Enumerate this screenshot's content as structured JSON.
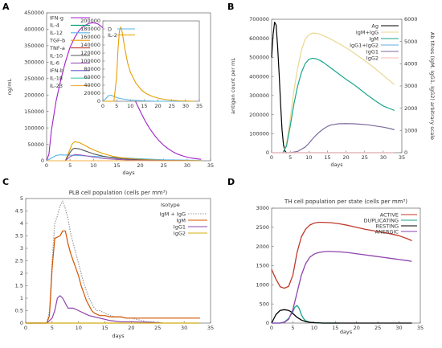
{
  "chart_data": [
    {
      "id": "A",
      "type": "line",
      "panel_label": "A",
      "xlabel": "days",
      "ylabel": "ng/mL",
      "xlim": [
        0,
        35
      ],
      "ylim": [
        0,
        450000
      ],
      "xticks": [
        0,
        5,
        10,
        15,
        20,
        25,
        30,
        35
      ],
      "yticks": [
        0,
        50000,
        100000,
        150000,
        200000,
        250000,
        300000,
        350000,
        400000,
        450000
      ],
      "legend_position": "top-left",
      "series": [
        {
          "name": "IFN-g",
          "color": "#a020c8",
          "x": [
            0,
            0.5,
            1,
            2,
            3,
            4,
            5,
            6,
            7,
            8,
            9,
            10,
            11,
            12,
            13,
            14,
            15,
            16,
            17,
            18,
            19,
            20,
            21,
            22,
            23,
            24,
            25,
            26,
            27,
            28,
            29,
            30,
            31,
            32,
            33
          ],
          "y": [
            0,
            20000,
            90000,
            180000,
            245000,
            300000,
            345000,
            375000,
            398000,
            410000,
            418000,
            420000,
            416000,
            405000,
            385000,
            358000,
            325000,
            290000,
            252000,
            215000,
            180000,
            150000,
            122000,
            98000,
            78000,
            61000,
            47000,
            36000,
            27000,
            20000,
            15000,
            11000,
            8000,
            6000,
            4500
          ]
        },
        {
          "name": "IL-4",
          "color": "#009e73",
          "x": [
            0,
            33
          ],
          "y": [
            0,
            0
          ]
        },
        {
          "name": "IL-12",
          "color": "#56b4e9",
          "x": [
            0,
            1,
            2,
            3,
            5,
            8,
            12,
            16,
            20,
            25,
            33
          ],
          "y": [
            0,
            8000,
            16000,
            18000,
            17000,
            15000,
            12000,
            9000,
            6000,
            3000,
            1000
          ]
        },
        {
          "name": "TGF-b",
          "color": "#e69f00",
          "x": [
            0,
            4,
            5,
            5.5,
            6,
            7,
            8,
            9,
            10,
            12,
            14,
            16,
            18,
            20,
            22,
            25,
            33
          ],
          "y": [
            0,
            0,
            35000,
            52000,
            58000,
            55000,
            48000,
            40000,
            33000,
            22000,
            14000,
            9000,
            6000,
            4000,
            2500,
            1000,
            0
          ]
        },
        {
          "name": "TNF-a",
          "color": "#c0392b",
          "x": [
            0,
            33
          ],
          "y": [
            0,
            0
          ]
        },
        {
          "name": "IL-10",
          "color": "#555555",
          "x": [
            0,
            4,
            5,
            5.5,
            6,
            7,
            8,
            9,
            10,
            12,
            14,
            16,
            18,
            20,
            22,
            25,
            33
          ],
          "y": [
            0,
            0,
            25000,
            35000,
            38000,
            36000,
            31000,
            26000,
            21000,
            14000,
            9000,
            6000,
            4000,
            2500,
            1500,
            800,
            0
          ]
        },
        {
          "name": "IL-6",
          "color": "#9b59b6",
          "x": [
            0,
            4,
            5,
            6,
            7,
            8,
            10,
            12,
            15,
            18,
            22,
            33
          ],
          "y": [
            0,
            0,
            12000,
            19000,
            18000,
            16000,
            11000,
            7000,
            4000,
            2000,
            800,
            0
          ]
        },
        {
          "name": "IFN-b",
          "color": "#6a5acd",
          "x": [
            0,
            33
          ],
          "y": [
            0,
            0
          ]
        },
        {
          "name": "IL-18",
          "color": "#48c9b0",
          "x": [
            0,
            33
          ],
          "y": [
            0,
            0
          ]
        },
        {
          "name": "IL-23",
          "color": "#f5b041",
          "x": [
            0,
            33
          ],
          "y": [
            0,
            0
          ]
        }
      ],
      "inset": {
        "xlim": [
          0,
          35
        ],
        "ylim": [
          0,
          200000
        ],
        "xticks": [
          0,
          5,
          10,
          15,
          20,
          25,
          30,
          35
        ],
        "yticks": [
          0,
          20000,
          40000,
          60000,
          80000,
          100000,
          120000,
          140000,
          160000,
          180000,
          200000
        ],
        "legend_position": "top-left",
        "series": [
          {
            "name": "D",
            "color": "#56b4e9",
            "x": [
              0,
              1,
              2,
              3,
              4,
              6,
              10,
              15,
              20,
              25,
              33
            ],
            "y": [
              0,
              6000,
              14000,
              15000,
              12000,
              7000,
              3000,
              1000,
              0,
              0,
              0
            ]
          },
          {
            "name": "IL-2",
            "color": "#e69f00",
            "x": [
              0,
              4,
              5,
              5.5,
              6,
              6.5,
              7,
              8,
              9,
              10,
              12,
              14,
              16,
              18,
              20,
              22,
              25,
              28,
              31,
              33
            ],
            "y": [
              0,
              0,
              60000,
              130000,
              175000,
              185000,
              172000,
              130000,
              95000,
              72000,
              45000,
              28000,
              18000,
              12000,
              8000,
              5000,
              2500,
              1000,
              500,
              0
            ]
          }
        ]
      }
    },
    {
      "id": "B",
      "type": "line",
      "panel_label": "B",
      "xlabel": "days",
      "ylabel": "antigen count per mL",
      "y2label": "Ab titres (IgM, IgG1, IgG2) arbitrary scale",
      "xlim": [
        0,
        35
      ],
      "ylim": [
        0,
        700000
      ],
      "y2lim": [
        0,
        6000
      ],
      "xticks": [
        0,
        5,
        10,
        15,
        20,
        25,
        30,
        35
      ],
      "yticks": [
        0,
        100000,
        200000,
        300000,
        400000,
        500000,
        600000,
        700000
      ],
      "y2ticks": [
        0,
        1000,
        2000,
        3000,
        4000,
        5000,
        6000
      ],
      "legend_position": "top-right",
      "series": [
        {
          "name": "Ag",
          "color": "#000000",
          "axis": "left",
          "x": [
            0,
            0.4,
            0.8,
            1.2,
            1.6,
            2.0,
            2.4,
            2.8,
            3.2,
            3.6,
            4.0
          ],
          "y": [
            500000,
            620000,
            685000,
            670000,
            560000,
            420000,
            260000,
            120000,
            40000,
            8000,
            0
          ]
        },
        {
          "name": "IgM+IgG",
          "color": "#e8d890",
          "axis": "right",
          "x": [
            3,
            4,
            5,
            6,
            7,
            8,
            9,
            10,
            11,
            12,
            13,
            14,
            16,
            18,
            20,
            22,
            24,
            26,
            28,
            30,
            32,
            33
          ],
          "y": [
            0,
            400,
            1500,
            2800,
            3800,
            4600,
            5100,
            5300,
            5380,
            5370,
            5330,
            5260,
            5100,
            4920,
            4720,
            4500,
            4260,
            4020,
            3760,
            3480,
            3200,
            3060
          ]
        },
        {
          "name": "IgM",
          "color": "#17a589",
          "axis": "right",
          "x": [
            3,
            4,
            5,
            6,
            7,
            8,
            9,
            10,
            11,
            12,
            13,
            14,
            16,
            18,
            20,
            22,
            24,
            26,
            28,
            30,
            32,
            33
          ],
          "y": [
            0,
            300,
            1200,
            2200,
            3000,
            3600,
            4000,
            4200,
            4250,
            4220,
            4150,
            4050,
            3800,
            3550,
            3300,
            3080,
            2820,
            2560,
            2320,
            2100,
            1970,
            1900
          ]
        },
        {
          "name": "IgG1+IgG2",
          "color": "#5dade2",
          "axis": "right",
          "x": [
            0,
            33
          ],
          "y": [
            0,
            0
          ]
        },
        {
          "name": "IgG1",
          "color": "#7d6b9e",
          "axis": "right",
          "x": [
            3,
            5,
            7,
            9,
            10,
            11,
            12,
            13,
            14,
            15,
            16,
            18,
            20,
            22,
            24,
            26,
            28,
            30,
            32,
            33
          ],
          "y": [
            0,
            0,
            60,
            250,
            420,
            620,
            800,
            950,
            1080,
            1180,
            1250,
            1300,
            1310,
            1300,
            1280,
            1250,
            1200,
            1150,
            1080,
            1030
          ]
        },
        {
          "name": "IgG2",
          "color": "#f5b7b1",
          "axis": "right",
          "x": [
            0,
            33
          ],
          "y": [
            0,
            0
          ]
        }
      ]
    },
    {
      "id": "C",
      "type": "line",
      "panel_label": "C",
      "title": "PLB cell population (cells per mm³)",
      "xlabel": "days",
      "ylabel": "",
      "xlim": [
        0,
        35
      ],
      "ylim": [
        0,
        5
      ],
      "xticks": [
        0,
        5,
        10,
        15,
        20,
        25,
        30,
        35
      ],
      "yticks": [
        0,
        0.5,
        1,
        1.5,
        2,
        2.5,
        3,
        3.5,
        4,
        4.5,
        5
      ],
      "legend_title": "Isotype",
      "legend_position": "top-right",
      "series": [
        {
          "name": "IgM + IgG",
          "color": "#999999",
          "dashed": true,
          "x": [
            0,
            4,
            4.5,
            5,
            5.5,
            6,
            6.5,
            7,
            7.5,
            8,
            8.5,
            9,
            9.5,
            10,
            10.5,
            11,
            11.5,
            12,
            12.5,
            13,
            13.5,
            14,
            15,
            16,
            17,
            18,
            19,
            20,
            21,
            22,
            23,
            24,
            25
          ],
          "y": [
            0,
            0,
            0.5,
            2.5,
            4.0,
            4.3,
            4.7,
            4.9,
            4.6,
            4.2,
            3.6,
            3.2,
            2.8,
            2.4,
            2.0,
            1.6,
            1.3,
            1.0,
            0.8,
            0.6,
            0.5,
            0.5,
            0.4,
            0.3,
            0.25,
            0.25,
            0.2,
            0.2,
            0.15,
            0.1,
            0.05,
            0.05,
            0
          ]
        },
        {
          "name": "IgM",
          "color": "#d35400",
          "x": [
            0,
            4,
            4.5,
            5,
            5.5,
            6,
            6.5,
            7,
            7.5,
            8,
            8.5,
            9,
            9.5,
            10,
            10.5,
            11,
            11.5,
            12,
            12.5,
            13,
            14,
            15,
            16,
            17,
            18,
            19,
            20,
            21,
            22,
            24,
            26,
            28,
            30,
            33
          ],
          "y": [
            0,
            0,
            0.3,
            2.2,
            3.4,
            3.45,
            3.5,
            3.7,
            3.7,
            3.2,
            2.8,
            2.5,
            2.2,
            1.9,
            1.5,
            1.2,
            0.9,
            0.7,
            0.5,
            0.4,
            0.3,
            0.3,
            0.25,
            0.25,
            0.25,
            0.2,
            0.2,
            0.2,
            0.2,
            0.2,
            0.2,
            0.2,
            0.2,
            0.2
          ]
        },
        {
          "name": "IgG1",
          "color": "#8e44ad",
          "x": [
            0,
            4,
            5,
            5.5,
            6,
            6.5,
            7,
            7.5,
            8,
            9,
            10,
            11,
            12,
            13,
            14,
            15,
            16,
            18,
            20,
            24,
            26
          ],
          "y": [
            0,
            0,
            0.2,
            0.5,
            1.0,
            1.1,
            1.0,
            0.8,
            0.6,
            0.6,
            0.5,
            0.4,
            0.3,
            0.25,
            0.2,
            0.15,
            0.1,
            0.05,
            0.05,
            0.03,
            0
          ]
        },
        {
          "name": "IgG2",
          "color": "#d4ac0d",
          "x": [
            0,
            33
          ],
          "y": [
            0,
            0
          ]
        }
      ]
    },
    {
      "id": "D",
      "type": "line",
      "panel_label": "D",
      "title": "TH cell population per state (cells per mm³)",
      "xlabel": "days",
      "ylabel": "",
      "xlim": [
        0,
        35
      ],
      "ylim": [
        0,
        3000
      ],
      "xticks": [
        0,
        5,
        10,
        15,
        20,
        25,
        30,
        35
      ],
      "yticks": [
        0,
        500,
        1000,
        1500,
        2000,
        2500,
        3000
      ],
      "legend_position": "top-right",
      "series": [
        {
          "name": "ACTIVE",
          "color": "#c0392b",
          "x": [
            0,
            1,
            2,
            3,
            4,
            5,
            6,
            7,
            8,
            9,
            10,
            11,
            12,
            14,
            16,
            18,
            20,
            22,
            24,
            26,
            28,
            30,
            32,
            33
          ],
          "y": [
            1400,
            1150,
            950,
            910,
            960,
            1250,
            1850,
            2250,
            2450,
            2560,
            2610,
            2630,
            2630,
            2620,
            2590,
            2550,
            2500,
            2450,
            2410,
            2370,
            2330,
            2280,
            2200,
            2150
          ]
        },
        {
          "name": "DUPLICATING",
          "color": "#17a589",
          "x": [
            0,
            2,
            3,
            4,
            5,
            5.5,
            6,
            6.5,
            7,
            7.5,
            8,
            9,
            10,
            11,
            12,
            14,
            16
          ],
          "y": [
            0,
            0,
            30,
            120,
            300,
            420,
            460,
            380,
            220,
            120,
            60,
            20,
            10,
            5,
            0,
            0,
            0
          ]
        },
        {
          "name": "RESTING",
          "color": "#000000",
          "x": [
            0,
            1,
            2,
            3,
            4,
            4.5,
            5,
            6,
            7,
            8,
            9,
            10,
            11,
            12,
            14,
            33
          ],
          "y": [
            0,
            220,
            330,
            350,
            330,
            300,
            250,
            150,
            80,
            40,
            20,
            10,
            5,
            0,
            0,
            0
          ]
        },
        {
          "name": "ANERGIC",
          "color": "#8e44ad",
          "x": [
            0,
            2,
            3,
            4,
            5,
            6,
            7,
            8,
            9,
            10,
            11,
            12,
            13,
            14,
            16,
            18,
            20,
            22,
            24,
            26,
            28,
            30,
            32,
            33
          ],
          "y": [
            0,
            0,
            20,
            100,
            350,
            800,
            1250,
            1550,
            1720,
            1800,
            1840,
            1860,
            1870,
            1870,
            1860,
            1840,
            1810,
            1780,
            1750,
            1720,
            1690,
            1660,
            1630,
            1610
          ]
        }
      ]
    }
  ]
}
